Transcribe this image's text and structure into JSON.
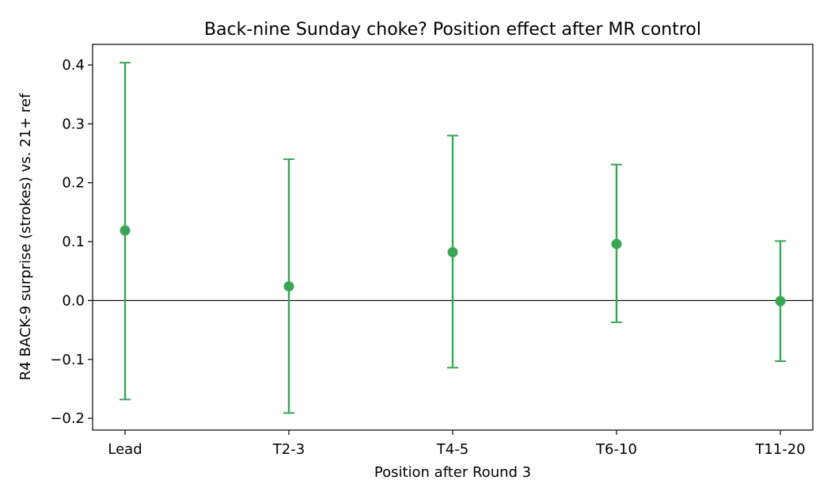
{
  "chart_data": {
    "type": "scatter",
    "title": "Back-nine Sunday choke? Position effect after MR control",
    "xlabel": "Position after Round 3",
    "ylabel": "R4 BACK-9 surprise (strokes) vs. 21+ ref",
    "categories": [
      "Lead",
      "T2-3",
      "T4-5",
      "T6-10",
      "T11-20"
    ],
    "series": [
      {
        "values": [
          0.119,
          0.024,
          0.082,
          0.096,
          -0.001
        ],
        "ci_low": [
          -0.168,
          -0.191,
          -0.114,
          -0.037,
          -0.103
        ],
        "ci_high": [
          0.404,
          0.24,
          0.28,
          0.231,
          0.101
        ],
        "color": "#3aa655"
      }
    ],
    "ylim": [
      -0.22,
      0.435
    ],
    "yticks": [
      -0.2,
      -0.1,
      0.0,
      0.1,
      0.2,
      0.3,
      0.4
    ],
    "ytick_labels": [
      "−0.2",
      "−0.1",
      "0.0",
      "0.1",
      "0.2",
      "0.3",
      "0.4"
    ],
    "reference_line": 0,
    "grid": false,
    "legend": "none"
  }
}
